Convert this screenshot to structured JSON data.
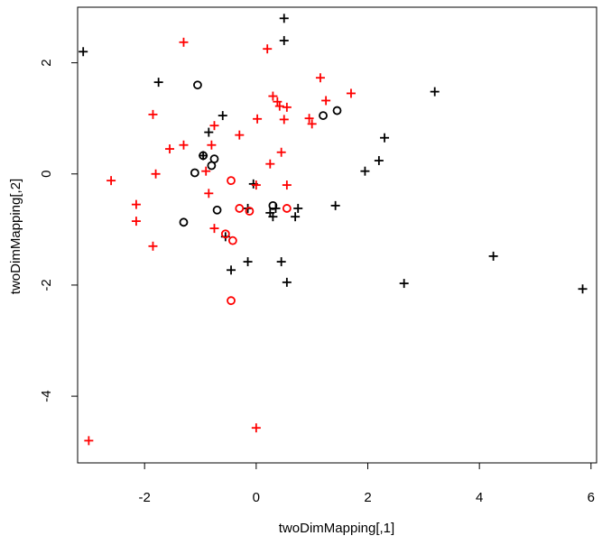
{
  "chart_data": {
    "type": "scatter",
    "title": "",
    "xlabel": "twoDimMapping[,1]",
    "ylabel": "twoDimMapping[,2]",
    "xlim": [
      -3.2,
      6.1
    ],
    "ylim": [
      -5.2,
      3.0
    ],
    "xticks": [
      -2,
      0,
      2,
      4,
      6
    ],
    "yticks": [
      -4,
      -2,
      0,
      2
    ],
    "grid": false,
    "legend": "none",
    "colors": {
      "black": "#000000",
      "red": "#ff0000"
    },
    "series": [
      {
        "marker": "plus",
        "color": "#000000",
        "points": [
          [
            -3.1,
            2.2
          ],
          [
            -1.75,
            1.65
          ],
          [
            -0.6,
            1.05
          ],
          [
            -0.85,
            0.75
          ],
          [
            -0.95,
            0.33
          ],
          [
            0.5,
            2.8
          ],
          [
            0.5,
            2.4
          ],
          [
            3.2,
            1.48
          ],
          [
            2.3,
            0.65
          ],
          [
            2.2,
            0.24
          ],
          [
            1.95,
            0.05
          ],
          [
            -0.05,
            -0.18
          ],
          [
            0.25,
            -0.7
          ],
          [
            0.3,
            -0.77
          ],
          [
            0.35,
            -0.62
          ],
          [
            0.7,
            -0.77
          ],
          [
            0.75,
            -0.62
          ],
          [
            1.42,
            -0.57
          ],
          [
            -0.15,
            -0.62
          ],
          [
            -0.55,
            -1.13
          ],
          [
            -0.45,
            -1.73
          ],
          [
            -0.15,
            -1.58
          ],
          [
            0.45,
            -1.58
          ],
          [
            0.55,
            -1.95
          ],
          [
            2.65,
            -1.97
          ],
          [
            4.25,
            -1.48
          ],
          [
            5.85,
            -2.07
          ]
        ]
      },
      {
        "marker": "circle",
        "color": "#000000",
        "points": [
          [
            -1.05,
            1.6
          ],
          [
            -0.95,
            0.33
          ],
          [
            -0.75,
            0.27
          ],
          [
            -0.8,
            0.15
          ],
          [
            -1.1,
            0.02
          ],
          [
            -0.7,
            -0.65
          ],
          [
            -1.3,
            -0.87
          ],
          [
            0.3,
            -0.57
          ],
          [
            1.2,
            1.05
          ],
          [
            1.45,
            1.14
          ]
        ]
      },
      {
        "marker": "plus",
        "color": "#ff0000",
        "points": [
          [
            -1.3,
            2.37
          ],
          [
            0.2,
            2.25
          ],
          [
            1.15,
            1.73
          ],
          [
            1.7,
            1.45
          ],
          [
            1.25,
            1.32
          ],
          [
            0.3,
            1.4
          ],
          [
            0.38,
            1.3
          ],
          [
            0.42,
            1.22
          ],
          [
            0.55,
            1.2
          ],
          [
            0.5,
            0.98
          ],
          [
            0.95,
            1.0
          ],
          [
            1.0,
            0.9
          ],
          [
            -1.85,
            1.07
          ],
          [
            0.02,
            0.99
          ],
          [
            -0.75,
            0.87
          ],
          [
            -0.3,
            0.7
          ],
          [
            -1.55,
            0.45
          ],
          [
            -1.3,
            0.52
          ],
          [
            -0.8,
            0.52
          ],
          [
            0.45,
            0.39
          ],
          [
            -0.9,
            0.05
          ],
          [
            0.25,
            0.18
          ],
          [
            -1.8,
            0.0
          ],
          [
            -2.6,
            -0.12
          ],
          [
            -2.15,
            -0.55
          ],
          [
            -2.15,
            -0.85
          ],
          [
            -0.85,
            -0.35
          ],
          [
            0.0,
            -0.2
          ],
          [
            0.55,
            -0.2
          ],
          [
            -0.75,
            -0.98
          ],
          [
            -1.85,
            -1.3
          ],
          [
            -3.0,
            -4.8
          ],
          [
            0.0,
            -4.57
          ]
        ]
      },
      {
        "marker": "circle",
        "color": "#ff0000",
        "points": [
          [
            -0.45,
            -0.12
          ],
          [
            -0.3,
            -0.62
          ],
          [
            -0.12,
            -0.67
          ],
          [
            0.55,
            -0.62
          ],
          [
            -0.55,
            -1.08
          ],
          [
            -0.42,
            -1.2
          ],
          [
            -0.45,
            -2.28
          ]
        ]
      }
    ]
  }
}
